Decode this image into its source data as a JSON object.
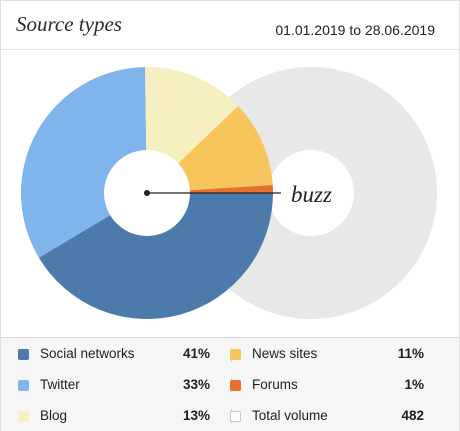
{
  "header": {
    "title": "Source types",
    "date_from": "01.01.2019",
    "date_sep": " to ",
    "date_to": "28.06.2019"
  },
  "chart_data": {
    "type": "pie",
    "center_label": "buzz",
    "slices": [
      {
        "name": "Social networks",
        "value": 41,
        "color": "#4b7aab"
      },
      {
        "name": "Twitter",
        "value": 33,
        "color": "#80b4ec"
      },
      {
        "name": "Blog",
        "value": 13,
        "color": "#f6f0c1"
      },
      {
        "name": "News sites",
        "value": 11,
        "color": "#f6c65c"
      },
      {
        "name": "Forums",
        "value": 1,
        "color": "#e8702e"
      }
    ],
    "total_volume": 482,
    "total_color": "#e8e8e8"
  },
  "legend": [
    {
      "label": "Social networks",
      "value": "41%",
      "color": "#4b7aab"
    },
    {
      "label": "News sites",
      "value": "11%",
      "color": "#f6c65c"
    },
    {
      "label": "Twitter",
      "value": "33%",
      "color": "#80b4ec"
    },
    {
      "label": "Forums",
      "value": "1%",
      "color": "#e8702e"
    },
    {
      "label": "Blog",
      "value": "13%",
      "color": "#f6f0c1"
    },
    {
      "label": "Total volume",
      "value": "482",
      "color": "#ffffff"
    }
  ]
}
